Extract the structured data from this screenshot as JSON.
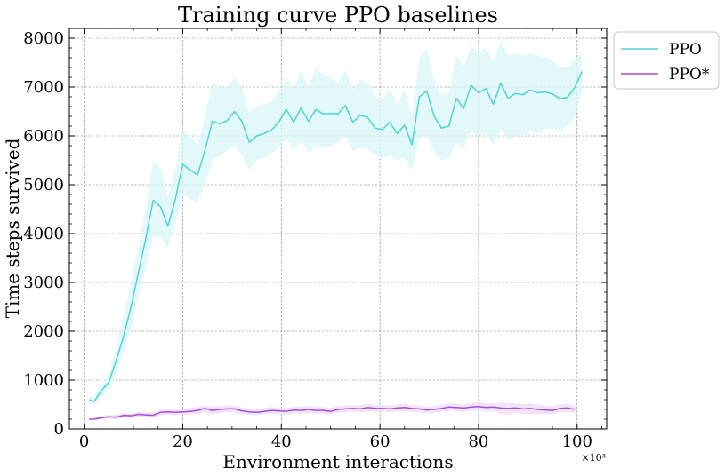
{
  "chart_data": {
    "type": "line",
    "title": "Training curve PPO baselines",
    "xlabel": "Environment interactions",
    "ylabel": "Time steps survived",
    "x_multiplier_label": "×10³",
    "xlim": [
      -3,
      106
    ],
    "ylim": [
      0,
      8200
    ],
    "xticks": [
      0,
      20,
      40,
      60,
      80,
      100
    ],
    "yticks": [
      0,
      1000,
      2000,
      3000,
      4000,
      5000,
      6000,
      7000,
      8000
    ],
    "grid": true,
    "legend_position": "top-right-outside",
    "series": [
      {
        "name": "PPO",
        "color": "#4fd3d6",
        "band_color": "#d8f6f7",
        "x": [
          1,
          2,
          3.5,
          5,
          6.5,
          8,
          9.5,
          11,
          12.5,
          14,
          15.5,
          17,
          18.5,
          20,
          21.5,
          23,
          24.5,
          26,
          27.5,
          29,
          30.5,
          32,
          33.5,
          35,
          36.5,
          38,
          39.5,
          41,
          42.5,
          44,
          45.5,
          47,
          48.5,
          50,
          51.5,
          53,
          54.5,
          56,
          57.5,
          59,
          60.5,
          62,
          63.5,
          65,
          66.5,
          68,
          69.5,
          71,
          72.5,
          74,
          75.5,
          77,
          78.5,
          80,
          81.5,
          83,
          84.5,
          86,
          87.5,
          89,
          90.5,
          92,
          93.5,
          95,
          96.5,
          98,
          99.5,
          101
        ],
        "values": [
          600,
          560,
          790,
          950,
          1400,
          1900,
          2500,
          3200,
          3900,
          4680,
          4550,
          4150,
          4700,
          5420,
          5300,
          5200,
          5700,
          6300,
          6250,
          6310,
          6500,
          6300,
          5870,
          6000,
          6050,
          6120,
          6280,
          6550,
          6280,
          6570,
          6300,
          6540,
          6450,
          6460,
          6450,
          6620,
          6280,
          6420,
          6380,
          6160,
          6130,
          6280,
          6050,
          6220,
          5820,
          6800,
          6920,
          6400,
          6160,
          6200,
          6770,
          6560,
          7040,
          6880,
          6970,
          6650,
          7080,
          6770,
          6870,
          6840,
          6940,
          6880,
          6900,
          6860,
          6760,
          6790,
          6990,
          7320
        ],
        "lower": [
          520,
          480,
          660,
          820,
          1150,
          1550,
          2050,
          2700,
          3300,
          3950,
          3900,
          3700,
          4200,
          4800,
          4700,
          4650,
          5000,
          5500,
          5600,
          5700,
          5800,
          5600,
          5300,
          5500,
          5550,
          5650,
          5750,
          5950,
          5700,
          5900,
          5650,
          5800,
          5750,
          5800,
          5850,
          6000,
          5700,
          5750,
          5750,
          5600,
          5550,
          5600,
          5500,
          5550,
          5300,
          5950,
          6000,
          5650,
          5500,
          5550,
          5850,
          5750,
          6100,
          6000,
          6050,
          5800,
          6150,
          5900,
          6000,
          6000,
          6100,
          6050,
          6150,
          6150,
          6100,
          6200,
          6350,
          6900
        ],
        "upper": [
          680,
          650,
          920,
          1100,
          1650,
          2300,
          3000,
          3750,
          4500,
          5500,
          5350,
          4750,
          5300,
          6150,
          6000,
          5800,
          6400,
          7100,
          7000,
          7000,
          7200,
          7000,
          6500,
          6600,
          6650,
          6700,
          6900,
          7200,
          6950,
          7350,
          7000,
          7400,
          7250,
          7200,
          7100,
          7350,
          6950,
          7150,
          7100,
          6800,
          6750,
          6950,
          6650,
          6950,
          6400,
          7600,
          7800,
          7150,
          6850,
          6900,
          7650,
          7400,
          7850,
          7700,
          7800,
          7500,
          7950,
          7650,
          7700,
          7650,
          7700,
          7650,
          7600,
          7550,
          7400,
          7400,
          7550,
          7700
        ]
      },
      {
        "name": "PPO*",
        "color": "#a24fd6",
        "band_color": "#efd9f7",
        "x": [
          1,
          2,
          3.5,
          5,
          6.5,
          8,
          9.5,
          11,
          12.5,
          14,
          15.5,
          17,
          18.5,
          20,
          21.5,
          23,
          24.5,
          26,
          27.5,
          29,
          30.5,
          32,
          33.5,
          35,
          36.5,
          38,
          39.5,
          41,
          42.5,
          44,
          45.5,
          47,
          48.5,
          50,
          51.5,
          53,
          54.5,
          56,
          57.5,
          59,
          60.5,
          62,
          63.5,
          65,
          66.5,
          68,
          69.5,
          71,
          72.5,
          74,
          75.5,
          77,
          78.5,
          80,
          81.5,
          83,
          84.5,
          86,
          87.5,
          89,
          90.5,
          92,
          93.5,
          95,
          96.5,
          98,
          99.5
        ],
        "values": [
          200,
          200,
          230,
          250,
          240,
          280,
          270,
          300,
          290,
          280,
          340,
          350,
          340,
          350,
          360,
          380,
          420,
          380,
          400,
          410,
          410,
          370,
          350,
          340,
          360,
          380,
          370,
          360,
          390,
          380,
          400,
          380,
          380,
          360,
          400,
          410,
          420,
          410,
          440,
          420,
          420,
          410,
          430,
          440,
          420,
          410,
          390,
          400,
          420,
          450,
          440,
          430,
          450,
          460,
          440,
          450,
          430,
          420,
          430,
          410,
          420,
          400,
          390,
          380,
          420,
          430,
          400
        ],
        "lower": [
          180,
          180,
          200,
          210,
          200,
          230,
          220,
          250,
          240,
          230,
          280,
          290,
          280,
          290,
          300,
          310,
          350,
          310,
          330,
          340,
          340,
          300,
          290,
          280,
          300,
          310,
          300,
          290,
          320,
          310,
          330,
          310,
          310,
          290,
          330,
          340,
          350,
          340,
          360,
          350,
          350,
          340,
          360,
          360,
          350,
          340,
          320,
          330,
          350,
          370,
          360,
          350,
          370,
          380,
          360,
          370,
          310,
          290,
          320,
          300,
          310,
          300,
          310,
          300,
          340,
          350,
          330
        ],
        "upper": [
          220,
          230,
          270,
          290,
          290,
          330,
          320,
          350,
          340,
          340,
          400,
          410,
          400,
          410,
          430,
          450,
          490,
          450,
          470,
          480,
          480,
          440,
          420,
          410,
          430,
          450,
          440,
          430,
          460,
          450,
          480,
          450,
          450,
          430,
          470,
          480,
          490,
          480,
          520,
          490,
          490,
          480,
          500,
          520,
          490,
          480,
          460,
          470,
          490,
          530,
          520,
          510,
          530,
          540,
          520,
          530,
          540,
          530,
          520,
          510,
          520,
          500,
          480,
          470,
          500,
          510,
          480
        ]
      }
    ]
  }
}
